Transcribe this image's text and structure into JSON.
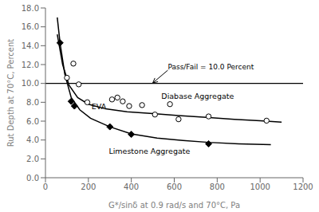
{
  "chart_data": {
    "type": "line",
    "xlabel": "G*/sinδ at 0.9 rad/s and 70°C, Pa",
    "ylabel": "Rut Depth at 70°C, Percent",
    "xlim": [
      0,
      1200
    ],
    "ylim": [
      0.0,
      18.0
    ],
    "xticks": [
      0,
      200,
      400,
      600,
      800,
      1000,
      1200
    ],
    "yticks": [
      {
        "value": 0.0,
        "label": "0.0"
      },
      {
        "value": 2.0,
        "label": "2.0"
      },
      {
        "value": 4.0,
        "label": "4.0"
      },
      {
        "value": 6.0,
        "label": "6.0"
      },
      {
        "value": 8.0,
        "label": "8.0"
      },
      {
        "value": 10.0,
        "label": "10.0"
      },
      {
        "value": 12.0,
        "label": "12.0"
      },
      {
        "value": 14.0,
        "label": "14.0"
      },
      {
        "value": 16.0,
        "label": "16.0"
      },
      {
        "value": 18.0,
        "label": "18.0"
      }
    ],
    "series": [
      {
        "type": "line",
        "color": "black",
        "x": [
          55,
          80,
          110,
          150,
          200,
          280,
          380,
          500,
          620,
          750,
          880,
          1000,
          1100
        ],
        "values": [
          15.2,
          12.0,
          9.8,
          8.5,
          7.8,
          7.3,
          7.0,
          6.8,
          6.6,
          6.4,
          6.2,
          6.05,
          5.9
        ]
      },
      {
        "type": "line",
        "color": "black",
        "x": [
          55,
          68,
          90,
          120,
          160,
          210,
          300,
          400,
          520,
          640,
          760,
          900,
          1050
        ],
        "values": [
          17.0,
          14.3,
          11.0,
          8.5,
          7.2,
          6.3,
          5.4,
          4.65,
          4.2,
          3.95,
          3.75,
          3.6,
          3.5
        ]
      },
      {
        "type": "scatter",
        "color": "black",
        "marker": "open_circle",
        "x": [
          100,
          130,
          155,
          195,
          310,
          335,
          360,
          390,
          450,
          510,
          580,
          620,
          760,
          1030
        ],
        "values": [
          10.6,
          12.1,
          9.9,
          8.0,
          8.3,
          8.5,
          8.1,
          7.6,
          7.7,
          6.7,
          7.8,
          6.2,
          6.5,
          6.05
        ]
      },
      {
        "type": "scatter",
        "color": "black",
        "marker": "diamond",
        "x": [
          68,
          120,
          135,
          300,
          400,
          760
        ],
        "values": [
          14.3,
          8.1,
          7.6,
          5.4,
          4.6,
          3.6
        ]
      }
    ],
    "reference_lines": [
      {
        "y": 10.0,
        "color": "black",
        "label": "Pass/Fail = 10.0 Percent",
        "label_x": 570,
        "label_y": 11.4,
        "arrow_x": 500,
        "arrow_y": 10.05
      }
    ],
    "annotations": [
      {
        "text": "EVA",
        "x": 215,
        "y": 7.6
      },
      {
        "text": "Diabase Aggregate",
        "x": 540,
        "y": 8.7
      },
      {
        "text": "Limestone Aggregate",
        "x": 295,
        "y": 2.85
      }
    ]
  }
}
